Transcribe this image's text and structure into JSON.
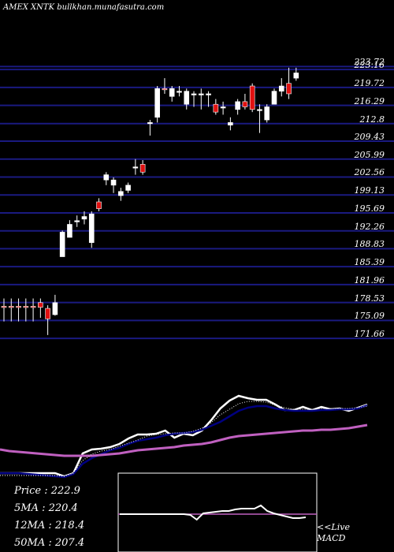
{
  "title": "AMEX XNTK bullkhan.munafasutra.com",
  "price_readout": {
    "price": "Price   : 222.9",
    "ma5": "5MA : 220.4",
    "ma12": "12MA : 218.4",
    "ma50": "50MA : 207.4"
  },
  "macd_note": {
    "line1": "<<Live",
    "line2": "MACD"
  },
  "colors": {
    "up": "#ffffff",
    "down": "#e01010",
    "grid": "#1a1a80",
    "ma_fast": "#000080",
    "ma_slow": "#c060c0",
    "price_line": "#ffffff"
  },
  "chart_data": {
    "type": "candlestick",
    "title": "AMEX XNTK bullkhan.munafasutra.com",
    "ylim": [
      168.5,
      226.5
    ],
    "y_tick_labels": [
      "223.72",
      "223.16",
      "219.72",
      "216.29",
      "212.8",
      "209.43",
      "205.99",
      "202.56",
      "199.13",
      "195.69",
      "192.26",
      "188.83",
      "185.39",
      "181.96",
      "178.53",
      "175.09",
      "171.66"
    ],
    "y_tick_values": [
      223.72,
      223.16,
      219.72,
      216.29,
      212.8,
      209.43,
      205.99,
      202.56,
      199.13,
      195.69,
      192.26,
      188.83,
      185.39,
      181.96,
      178.53,
      175.09,
      171.66
    ],
    "candles": [
      {
        "o": 177.8,
        "h": 179.3,
        "l": 174.9,
        "c": 177.8,
        "dir": "down"
      },
      {
        "o": 177.8,
        "h": 179.3,
        "l": 174.9,
        "c": 177.8,
        "dir": "down"
      },
      {
        "o": 177.8,
        "h": 179.3,
        "l": 174.9,
        "c": 177.8,
        "dir": "down"
      },
      {
        "o": 177.8,
        "h": 179.3,
        "l": 174.9,
        "c": 177.8,
        "dir": "down"
      },
      {
        "o": 177.8,
        "h": 179.3,
        "l": 174.9,
        "c": 177.8,
        "dir": "down"
      },
      {
        "o": 178.5,
        "h": 179.3,
        "l": 175.6,
        "c": 177.6,
        "dir": "down"
      },
      {
        "o": 177.4,
        "h": 178.0,
        "l": 172.3,
        "c": 175.4,
        "dir": "down"
      },
      {
        "o": 176.2,
        "h": 180.0,
        "l": 176.0,
        "c": 178.5,
        "dir": "up"
      },
      {
        "o": 187.3,
        "h": 192.3,
        "l": 187.3,
        "c": 192.0,
        "dir": "up"
      },
      {
        "o": 191.0,
        "h": 194.3,
        "l": 191.0,
        "c": 193.5,
        "dir": "up"
      },
      {
        "o": 194.0,
        "h": 195.2,
        "l": 193.0,
        "c": 194.2,
        "dir": "up"
      },
      {
        "o": 194.5,
        "h": 196.0,
        "l": 193.5,
        "c": 195.0,
        "dir": "up"
      },
      {
        "o": 190.0,
        "h": 196.0,
        "l": 189.0,
        "c": 195.5,
        "dir": "up"
      },
      {
        "o": 196.5,
        "h": 198.5,
        "l": 196.0,
        "c": 197.8,
        "dir": "down"
      },
      {
        "o": 202.0,
        "h": 203.5,
        "l": 201.0,
        "c": 203.0,
        "dir": "up"
      },
      {
        "o": 201.0,
        "h": 202.5,
        "l": 199.5,
        "c": 202.0,
        "dir": "up"
      },
      {
        "o": 199.0,
        "h": 200.5,
        "l": 198.0,
        "c": 199.8,
        "dir": "up"
      },
      {
        "o": 200.0,
        "h": 201.5,
        "l": 199.5,
        "c": 201.0,
        "dir": "up"
      },
      {
        "o": 204.5,
        "h": 206.0,
        "l": 203.0,
        "c": 204.5,
        "dir": "up"
      },
      {
        "o": 205.0,
        "h": 205.8,
        "l": 203.0,
        "c": 203.5,
        "dir": "down"
      },
      {
        "o": 213.0,
        "h": 213.5,
        "l": 210.5,
        "c": 213.0,
        "dir": "up"
      },
      {
        "o": 214.0,
        "h": 220.0,
        "l": 213.0,
        "c": 219.5,
        "dir": "up"
      },
      {
        "o": 219.5,
        "h": 221.5,
        "l": 218.5,
        "c": 219.5,
        "dir": "down"
      },
      {
        "o": 219.5,
        "h": 220.0,
        "l": 217.0,
        "c": 218.0,
        "dir": "up"
      },
      {
        "o": 219.0,
        "h": 220.0,
        "l": 218.0,
        "c": 219.0,
        "dir": "up"
      },
      {
        "o": 219.0,
        "h": 219.5,
        "l": 215.5,
        "c": 216.5,
        "dir": "up"
      },
      {
        "o": 218.5,
        "h": 219.0,
        "l": 216.0,
        "c": 218.5,
        "dir": "up"
      },
      {
        "o": 218.5,
        "h": 219.5,
        "l": 215.5,
        "c": 218.5,
        "dir": "up"
      },
      {
        "o": 218.5,
        "h": 219.0,
        "l": 216.0,
        "c": 218.5,
        "dir": "up"
      },
      {
        "o": 216.5,
        "h": 217.5,
        "l": 214.5,
        "c": 215.0,
        "dir": "down"
      },
      {
        "o": 216.0,
        "h": 217.0,
        "l": 214.5,
        "c": 216.0,
        "dir": "up"
      },
      {
        "o": 213.0,
        "h": 214.0,
        "l": 211.5,
        "c": 212.5,
        "dir": "up"
      },
      {
        "o": 215.5,
        "h": 217.5,
        "l": 214.5,
        "c": 217.0,
        "dir": "up"
      },
      {
        "o": 217.0,
        "h": 218.5,
        "l": 215.5,
        "c": 216.0,
        "dir": "down"
      },
      {
        "o": 220.0,
        "h": 220.5,
        "l": 215.0,
        "c": 215.5,
        "dir": "down"
      },
      {
        "o": 215.5,
        "h": 216.5,
        "l": 211.0,
        "c": 215.5,
        "dir": "up"
      },
      {
        "o": 213.5,
        "h": 216.5,
        "l": 213.0,
        "c": 216.0,
        "dir": "up"
      },
      {
        "o": 216.5,
        "h": 219.5,
        "l": 216.5,
        "c": 219.0,
        "dir": "up"
      },
      {
        "o": 219.0,
        "h": 221.5,
        "l": 218.0,
        "c": 220.0,
        "dir": "up"
      },
      {
        "o": 218.5,
        "h": 223.5,
        "l": 217.5,
        "c": 220.5,
        "dir": "down"
      },
      {
        "o": 221.5,
        "h": 223.5,
        "l": 221.0,
        "c": 222.5,
        "dir": "up"
      }
    ],
    "indicator_lines": [
      {
        "name": "price",
        "color": "#ffffff",
        "values": [
          600,
          600,
          600,
          600,
          600,
          600,
          600,
          604,
          600,
          575,
          570,
          569,
          567,
          563,
          556,
          551,
          551,
          550,
          546,
          555,
          550,
          552,
          546,
          533,
          518,
          508,
          502,
          505,
          507,
          507,
          513,
          520,
          520,
          516,
          520,
          516,
          519,
          518,
          521,
          517,
          513
        ]
      },
      {
        "name": "ma_fast",
        "color": "#000080",
        "values": [
          600,
          600,
          600,
          601,
          602,
          603,
          604,
          605,
          601,
          588,
          581,
          576,
          571,
          568,
          563,
          559,
          557,
          555,
          552,
          550,
          549,
          548,
          545,
          540,
          535,
          528,
          521,
          517,
          515,
          515,
          518,
          520,
          521,
          521,
          521,
          520,
          520,
          519,
          519,
          518,
          514
        ]
      },
      {
        "name": "ma_slow",
        "color": "#c060c0",
        "values": [
          570,
          572,
          573,
          574,
          575,
          576,
          577,
          578,
          578,
          578,
          578,
          577,
          576,
          575,
          573,
          571,
          570,
          569,
          568,
          567,
          565,
          564,
          563,
          561,
          558,
          555,
          553,
          552,
          551,
          550,
          549,
          548,
          547,
          546,
          546,
          545,
          545,
          544,
          543,
          541,
          539
        ]
      },
      {
        "name": "ma_dotted",
        "color": "#ffffff",
        "values": [
          603,
          603,
          603,
          603,
          603,
          603,
          603,
          604,
          600,
          584,
          576,
          572,
          570,
          566,
          562,
          558,
          553,
          551,
          550,
          549,
          549,
          547,
          543,
          536,
          526,
          519,
          512,
          509,
          509,
          510,
          514,
          517,
          519,
          519,
          519,
          518,
          518,
          518,
          518,
          517,
          515
        ]
      }
    ],
    "macd_values": [
      652,
      652,
      652,
      652,
      652,
      652,
      652,
      652,
      652,
      652,
      652,
      653,
      659,
      651,
      650,
      649,
      648,
      648,
      646,
      645,
      645,
      645,
      641,
      648,
      651,
      653,
      655,
      657,
      657,
      656
    ]
  }
}
